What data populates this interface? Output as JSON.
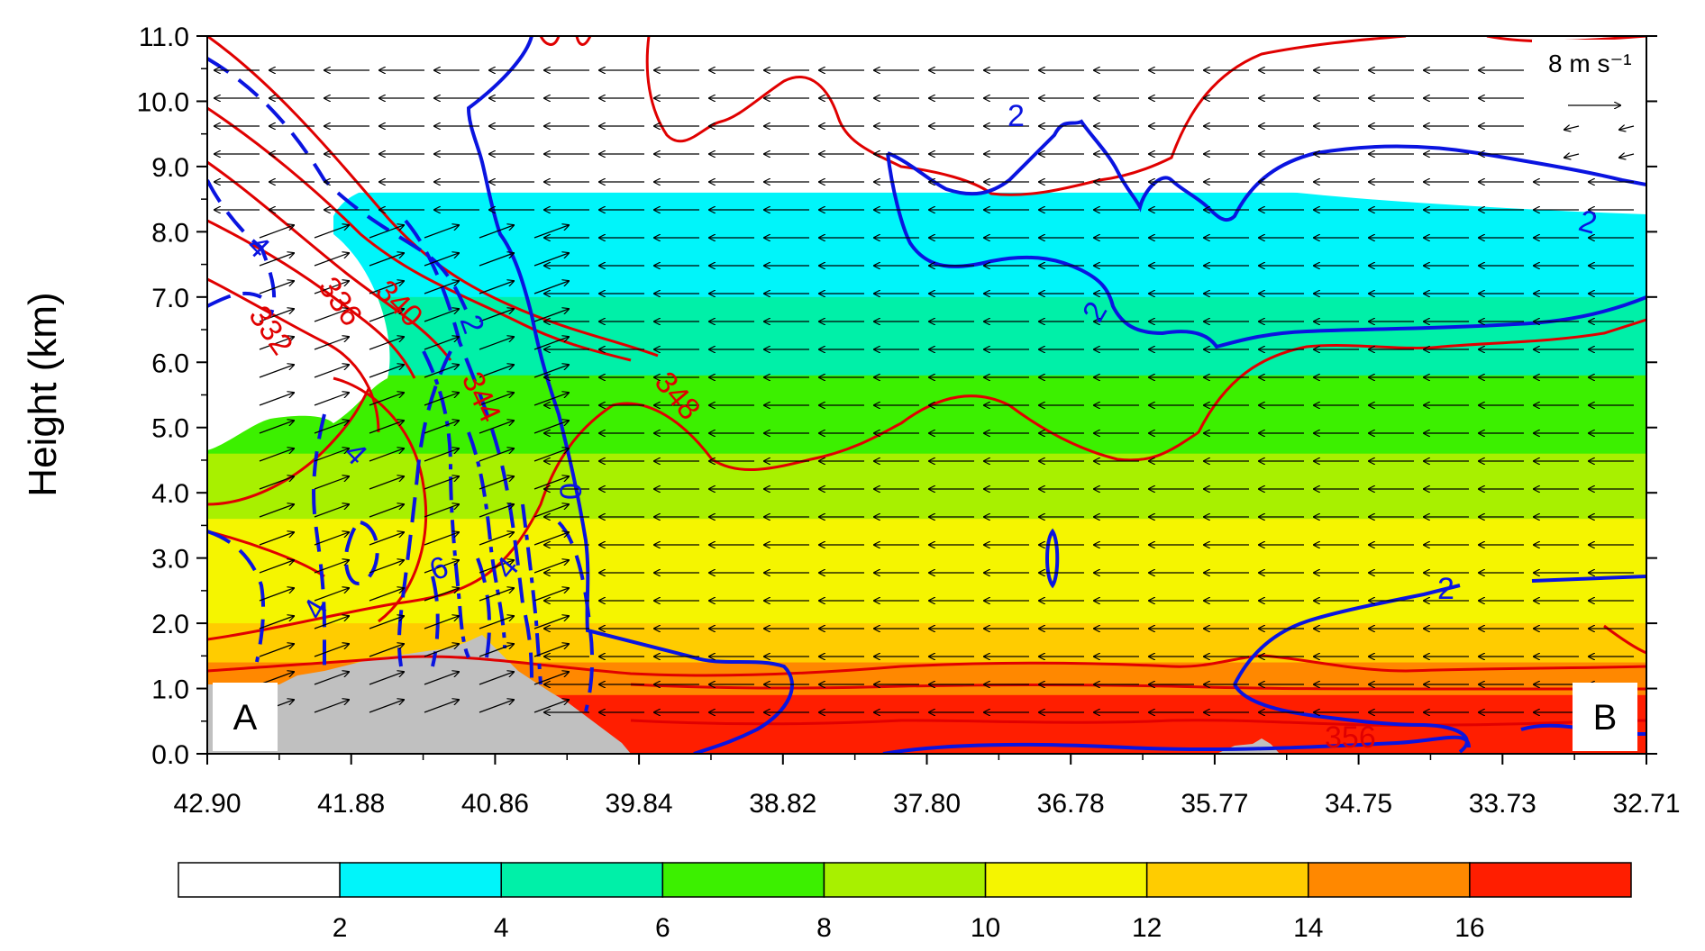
{
  "chart_data": {
    "type": "heatmap",
    "ylabel": "Height (km)",
    "xlabel": "",
    "x_ticks": [
      "42.90",
      "41.88",
      "40.86",
      "39.84",
      "38.82",
      "37.80",
      "36.78",
      "35.77",
      "34.75",
      "33.73",
      "32.71"
    ],
    "y_ticks": [
      "0.0",
      "1.0",
      "2.0",
      "3.0",
      "4.0",
      "5.0",
      "6.0",
      "7.0",
      "8.0",
      "9.0",
      "10.0",
      "11.0"
    ],
    "ylim": [
      0,
      11
    ],
    "xlim": [
      42.9,
      32.71
    ],
    "colorbar": {
      "tick_labels": [
        "2",
        "4",
        "6",
        "8",
        "10",
        "12",
        "14",
        "16"
      ],
      "colors": [
        "#ffffff",
        "#00f5fa",
        "#00f0a8",
        "#3cf000",
        "#a8f000",
        "#f5f500",
        "#ffcc00",
        "#ff8800",
        "#ff1e00"
      ]
    },
    "shading_layers_km": [
      {
        "level": "16+",
        "top": 0.9
      },
      {
        "level": "14-16",
        "top": 1.4
      },
      {
        "level": "12-14",
        "top": 2.0
      },
      {
        "level": "10-12",
        "top": 3.6
      },
      {
        "level": "8-10",
        "top": 4.6
      },
      {
        "level": "6-8",
        "top": 5.8
      },
      {
        "level": "4-6",
        "top": 7.0
      },
      {
        "level": "2-4",
        "top": 8.6
      }
    ],
    "red_contour_labels": [
      "332",
      "336",
      "340",
      "344",
      "348",
      "356"
    ],
    "blue_contour_labels": [
      "2",
      "2",
      "2",
      "2",
      "4",
      "4",
      "4",
      "4",
      "6",
      "0"
    ],
    "reference_vector_label": "8 m s⁻¹",
    "corner_labels": {
      "left": "A",
      "right": "B"
    },
    "colors": {
      "theta_e_contour": "#e00000",
      "vertical_motion_contour": "#0a14e0",
      "terrain": "#c0c0c0",
      "vector": "#000000"
    }
  }
}
